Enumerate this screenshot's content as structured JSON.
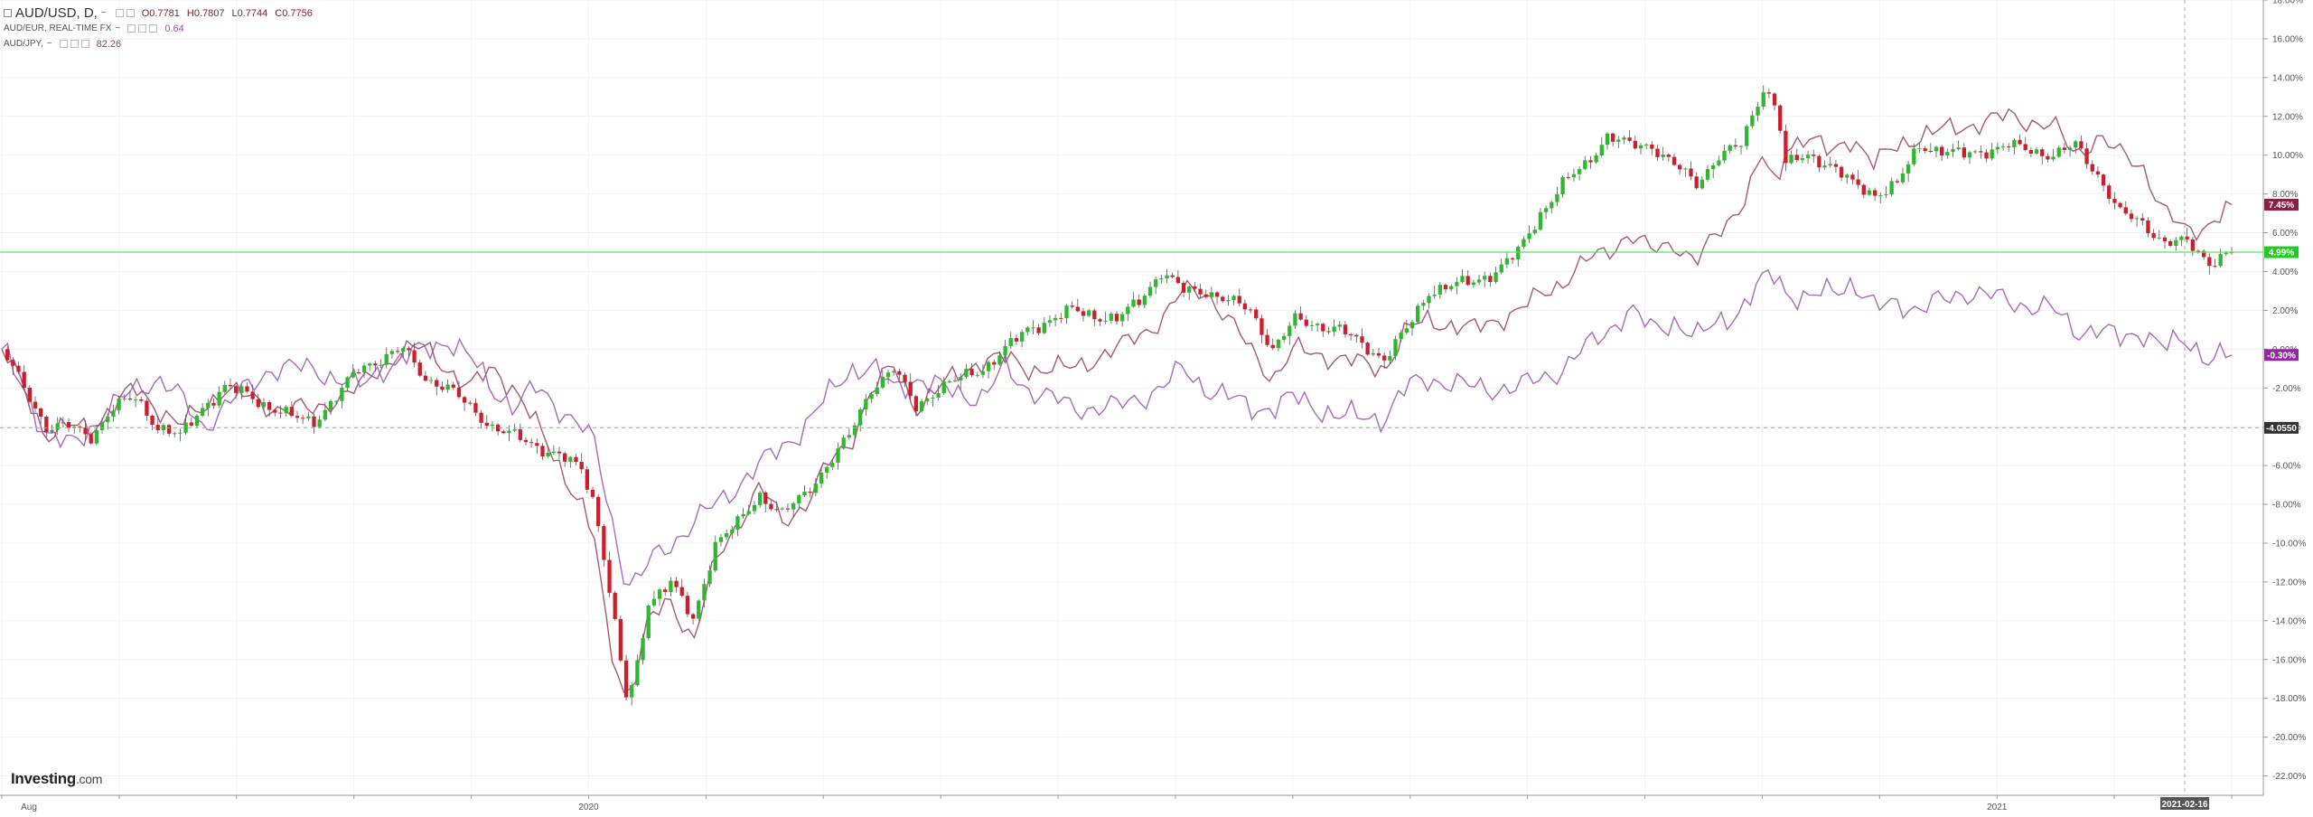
{
  "legend": {
    "main_symbol": "AUD/USD, D,",
    "main_menu": "~",
    "ohlc": {
      "open": "O0.7781",
      "high": "H0.7807",
      "low": "L0.7744",
      "close": "C0.7756"
    },
    "compare1_name": "AUD/EUR, REAL-TIME FX",
    "compare1_menu": "~",
    "compare1_value": "0.64",
    "compare2_name": "AUD/JPY,",
    "compare2_menu": "~",
    "compare2_value": "82.26"
  },
  "logo": {
    "brand": "Investing",
    "suffix": ".com"
  },
  "colors": {
    "up": "#2eb82e",
    "down": "#cc1f2b",
    "compare1": "#9a3a5e",
    "compare2": "#9b4fb0",
    "current_line": "#5fe05f"
  },
  "chart_data": {
    "type": "line",
    "y_axis_unit": "percent",
    "ylim": [
      -23,
      18
    ],
    "y_ticks": [
      "18.00%",
      "16.00%",
      "14.00%",
      "12.00%",
      "10.00%",
      "8.00%",
      "6.00%",
      "4.00%",
      "2.00%",
      "0.00%",
      "-2.00%",
      "-4.00%",
      "-6.00%",
      "-8.00%",
      "-10.00%",
      "-12.00%",
      "-14.00%",
      "-16.00%",
      "-18.00%",
      "-20.00%",
      "-22.00%"
    ],
    "y_tick_values": [
      18,
      16,
      14,
      12,
      10,
      8,
      6,
      4,
      2,
      0,
      -2,
      -4,
      -6,
      -8,
      -10,
      -12,
      -14,
      -16,
      -18,
      -20,
      -22
    ],
    "x_labels": [
      "Aug",
      "2020",
      "2021"
    ],
    "x_label_month_index": [
      0,
      5,
      17
    ],
    "months_total": 19,
    "crosshair_date": "2021-02-16",
    "crosshair_month": 18.6,
    "crosshair_y_label": "-4.0550",
    "crosshair_y_value": -4.055,
    "grid": true,
    "series": [
      {
        "name": "AUD/USD",
        "kind": "candlestick",
        "keypoints": [
          [
            0,
            0
          ],
          [
            0.5,
            -2
          ],
          [
            1,
            -4
          ],
          [
            1.5,
            -4
          ],
          [
            2,
            -4.5
          ],
          [
            2.5,
            -3
          ],
          [
            3,
            -2.5
          ],
          [
            3.5,
            -4
          ],
          [
            4,
            -4.5
          ],
          [
            4.5,
            -3
          ],
          [
            5,
            -2
          ],
          [
            5.5,
            -2.3
          ],
          [
            6,
            -3
          ],
          [
            6.5,
            -3.5
          ],
          [
            7,
            -3.7
          ],
          [
            7.5,
            -2.5
          ],
          [
            8,
            -1
          ],
          [
            8.5,
            -0.5
          ],
          [
            9,
            0
          ],
          [
            9.5,
            -1.5
          ],
          [
            10,
            -2
          ],
          [
            10.5,
            -3
          ],
          [
            11,
            -4
          ],
          [
            11.5,
            -4.5
          ],
          [
            12,
            -5
          ],
          [
            12.5,
            -5.5
          ],
          [
            13,
            -6.2
          ],
          [
            13.3,
            -8
          ],
          [
            13.6,
            -12
          ],
          [
            14,
            -18
          ],
          [
            14.2,
            -17
          ],
          [
            14.5,
            -13
          ],
          [
            15,
            -12
          ],
          [
            15.5,
            -14
          ],
          [
            16,
            -10
          ],
          [
            16.5,
            -9
          ],
          [
            17,
            -7.5
          ],
          [
            17.5,
            -8.5
          ],
          [
            18,
            -7.5
          ],
          [
            18.5,
            -6
          ],
          [
            19,
            -4.5
          ],
          [
            19.5,
            -2
          ],
          [
            20,
            -1
          ],
          [
            20.5,
            -3
          ],
          [
            21,
            -2
          ],
          [
            22,
            -1
          ],
          [
            22.5,
            0
          ],
          [
            23,
            1
          ],
          [
            24,
            2
          ],
          [
            25,
            1.5
          ],
          [
            25.5,
            2.5
          ],
          [
            26,
            4
          ],
          [
            26.5,
            3
          ],
          [
            27,
            3
          ],
          [
            28,
            2
          ],
          [
            28.5,
            0
          ],
          [
            29,
            1.5
          ],
          [
            30,
            1
          ],
          [
            31,
            -0.5
          ],
          [
            31.5,
            1
          ],
          [
            32,
            3
          ],
          [
            33,
            3.5
          ],
          [
            33.5,
            4
          ],
          [
            34,
            5
          ],
          [
            34.5,
            7
          ],
          [
            35,
            8.5
          ],
          [
            35.5,
            9.5
          ],
          [
            36,
            11
          ],
          [
            36.5,
            10.5
          ],
          [
            37,
            10.5
          ],
          [
            37.5,
            9.5
          ],
          [
            38,
            8.5
          ],
          [
            38.5,
            10
          ],
          [
            39,
            10.5
          ],
          [
            39.5,
            13.5
          ],
          [
            39.8,
            12.5
          ],
          [
            40,
            9.5
          ],
          [
            40.5,
            10
          ],
          [
            41,
            9.5
          ],
          [
            41.5,
            8.5
          ],
          [
            42,
            8
          ],
          [
            42.5,
            8.5
          ],
          [
            43,
            10.5
          ],
          [
            44,
            10
          ],
          [
            45,
            10.5
          ],
          [
            46,
            10
          ],
          [
            46.5,
            10.5
          ],
          [
            47,
            9
          ],
          [
            47.5,
            7
          ],
          [
            48,
            6.5
          ],
          [
            48.5,
            5.5
          ],
          [
            49,
            5.5
          ],
          [
            49.5,
            4.5
          ],
          [
            50,
            5
          ]
        ],
        "last": "4.99%"
      },
      {
        "name": "AUD/EUR, REAL-TIME FX",
        "kind": "line",
        "keypoints": [
          [
            0,
            0
          ],
          [
            0.5,
            -2
          ],
          [
            1,
            -4.5
          ],
          [
            1.5,
            -4
          ],
          [
            2,
            -4
          ],
          [
            2.5,
            -3
          ],
          [
            3,
            -2
          ],
          [
            3.5,
            -3
          ],
          [
            4,
            -4
          ],
          [
            4.5,
            -3
          ],
          [
            5,
            -2
          ],
          [
            5.5,
            -2.5
          ],
          [
            6,
            -3
          ],
          [
            6.5,
            -3
          ],
          [
            7,
            -3.2
          ],
          [
            7.5,
            -2.5
          ],
          [
            8,
            -2
          ],
          [
            8.5,
            -1
          ],
          [
            9,
            0
          ],
          [
            9.5,
            0
          ],
          [
            10,
            -1
          ],
          [
            10.5,
            -2
          ],
          [
            11,
            -1
          ],
          [
            11.5,
            -2
          ],
          [
            12,
            -4
          ],
          [
            12.5,
            -6
          ],
          [
            13,
            -8
          ],
          [
            13.3,
            -10
          ],
          [
            13.6,
            -15
          ],
          [
            14,
            -18
          ],
          [
            14.3,
            -16
          ],
          [
            14.5,
            -14
          ],
          [
            15,
            -13
          ],
          [
            15.5,
            -15
          ],
          [
            16,
            -11
          ],
          [
            16.5,
            -9
          ],
          [
            17,
            -7
          ],
          [
            17.5,
            -9
          ],
          [
            18,
            -8
          ],
          [
            18.5,
            -6
          ],
          [
            19,
            -5
          ],
          [
            19.5,
            -2
          ],
          [
            20,
            -1
          ],
          [
            20.5,
            -3
          ],
          [
            21,
            -2
          ],
          [
            22,
            -0.5
          ],
          [
            22.5,
            -0.5
          ],
          [
            23,
            -1
          ],
          [
            24,
            -1
          ],
          [
            25,
            0
          ],
          [
            26,
            1.5
          ],
          [
            26.5,
            3
          ],
          [
            27,
            3
          ],
          [
            28,
            0
          ],
          [
            28.5,
            -1.5
          ],
          [
            29,
            0
          ],
          [
            30,
            -0.5
          ],
          [
            31,
            -1
          ],
          [
            31.5,
            1
          ],
          [
            32,
            1.5
          ],
          [
            33,
            1
          ],
          [
            34,
            2
          ],
          [
            35,
            3.5
          ],
          [
            35.5,
            4.5
          ],
          [
            36,
            5
          ],
          [
            36.5,
            6
          ],
          [
            37,
            5
          ],
          [
            37.5,
            5.5
          ],
          [
            38,
            4.5
          ],
          [
            38.5,
            6
          ],
          [
            39,
            7.5
          ],
          [
            39.5,
            10
          ],
          [
            39.8,
            8
          ],
          [
            40,
            10.5
          ],
          [
            40.5,
            11
          ],
          [
            41,
            10
          ],
          [
            41.5,
            11
          ],
          [
            42,
            9.5
          ],
          [
            42.5,
            10.5
          ],
          [
            43,
            11
          ],
          [
            44,
            11.5
          ],
          [
            45,
            12
          ],
          [
            46,
            11.5
          ],
          [
            46.5,
            10
          ],
          [
            47,
            11
          ],
          [
            47.5,
            10
          ],
          [
            48,
            9.5
          ],
          [
            48.5,
            7
          ],
          [
            49,
            6
          ],
          [
            49.5,
            6.5
          ],
          [
            50,
            7.45
          ]
        ],
        "last": "7.45%"
      },
      {
        "name": "AUD/JPY",
        "kind": "line",
        "keypoints": [
          [
            0,
            0
          ],
          [
            0.5,
            -2
          ],
          [
            1,
            -4.5
          ],
          [
            1.5,
            -5
          ],
          [
            2,
            -4
          ],
          [
            2.5,
            -3
          ],
          [
            3,
            -2
          ],
          [
            3.5,
            -1.5
          ],
          [
            4,
            -2.5
          ],
          [
            4.5,
            -4
          ],
          [
            5,
            -3
          ],
          [
            5.5,
            -2
          ],
          [
            6,
            -1
          ],
          [
            6.5,
            -1
          ],
          [
            7,
            -1
          ],
          [
            7.5,
            -1.5
          ],
          [
            8,
            -2
          ],
          [
            8.5,
            -1
          ],
          [
            9,
            -0.5
          ],
          [
            9.5,
            0
          ],
          [
            10,
            0.5
          ],
          [
            10.5,
            -0.5
          ],
          [
            11,
            -2
          ],
          [
            11.5,
            -3
          ],
          [
            12,
            -2
          ],
          [
            12.5,
            -3
          ],
          [
            13,
            -4
          ],
          [
            13.3,
            -5
          ],
          [
            13.6,
            -8
          ],
          [
            14,
            -12
          ],
          [
            14.3,
            -12
          ],
          [
            14.5,
            -11
          ],
          [
            15,
            -10
          ],
          [
            15.5,
            -9
          ],
          [
            16,
            -8
          ],
          [
            16.5,
            -7
          ],
          [
            17,
            -6
          ],
          [
            17.5,
            -5
          ],
          [
            18,
            -4
          ],
          [
            18.5,
            -2.5
          ],
          [
            19,
            -1
          ],
          [
            19.5,
            -1
          ],
          [
            20,
            -2
          ],
          [
            20.5,
            -1.5
          ],
          [
            21,
            -2
          ],
          [
            22,
            -2.5
          ],
          [
            22.5,
            -1
          ],
          [
            23,
            -2
          ],
          [
            24,
            -3
          ],
          [
            25,
            -3
          ],
          [
            26,
            -2
          ],
          [
            26.5,
            -1
          ],
          [
            27,
            -2
          ],
          [
            28,
            -3
          ],
          [
            28.5,
            -3
          ],
          [
            29,
            -2.5
          ],
          [
            30,
            -3.5
          ],
          [
            31,
            -3.5
          ],
          [
            31.5,
            -2
          ],
          [
            32,
            -1.5
          ],
          [
            33,
            -2
          ],
          [
            34,
            -2
          ],
          [
            35,
            -1
          ],
          [
            35.5,
            0
          ],
          [
            36,
            1
          ],
          [
            36.5,
            2
          ],
          [
            37,
            1
          ],
          [
            37.5,
            1.5
          ],
          [
            38,
            0.5
          ],
          [
            38.5,
            1.5
          ],
          [
            39,
            2
          ],
          [
            39.5,
            3.5
          ],
          [
            39.8,
            4
          ],
          [
            40,
            3
          ],
          [
            40.5,
            2.5
          ],
          [
            41,
            3
          ],
          [
            41.5,
            3.5
          ],
          [
            42,
            2
          ],
          [
            42.5,
            2.5
          ],
          [
            43,
            2
          ],
          [
            44,
            3
          ],
          [
            45,
            2.5
          ],
          [
            46,
            2
          ],
          [
            46.5,
            1
          ],
          [
            47,
            1
          ],
          [
            47.5,
            0.5
          ],
          [
            48,
            1
          ],
          [
            48.5,
            0
          ],
          [
            49,
            0.5
          ],
          [
            49.5,
            -0.5
          ],
          [
            50,
            -0.3
          ]
        ],
        "last": "-0.30%"
      }
    ]
  }
}
